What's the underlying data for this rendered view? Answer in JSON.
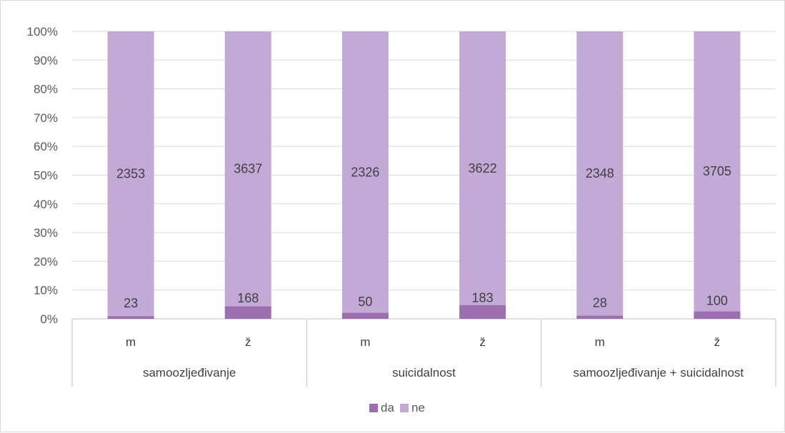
{
  "chart_data": {
    "type": "bar",
    "stacking": "percent",
    "groups": [
      {
        "label": "samoozljeđivanje",
        "categories": [
          "m",
          "ž"
        ]
      },
      {
        "label": "suicidalnost",
        "categories": [
          "m",
          "ž"
        ]
      },
      {
        "label": "samoozljeđivanje + suicidalnost",
        "categories": [
          "m",
          "ž"
        ]
      }
    ],
    "series": [
      {
        "name": "da",
        "color": "#9e6fb0",
        "values": [
          23,
          168,
          50,
          183,
          28,
          100
        ]
      },
      {
        "name": "ne",
        "color": "#c2a9d6",
        "values": [
          2353,
          3637,
          2326,
          3622,
          2348,
          3705
        ]
      }
    ],
    "y_ticks": [
      "0%",
      "10%",
      "20%",
      "30%",
      "40%",
      "50%",
      "60%",
      "70%",
      "80%",
      "90%",
      "100%"
    ],
    "ylim": [
      0,
      100
    ],
    "grid": true,
    "legend_position": "bottom"
  }
}
